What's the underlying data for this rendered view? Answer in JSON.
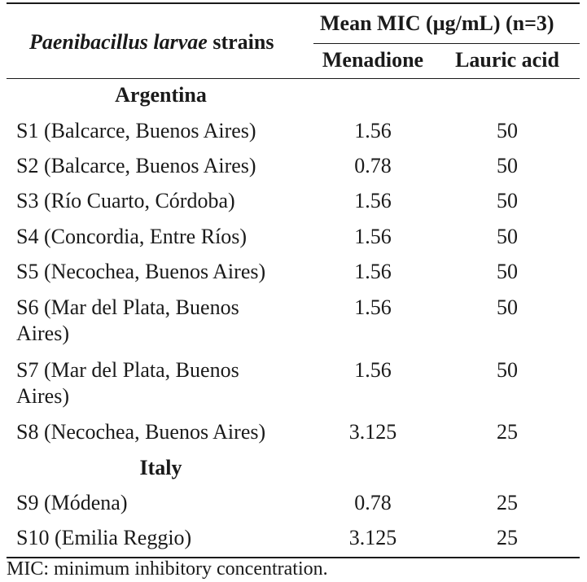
{
  "table": {
    "header": {
      "strain_col_italic": "Paenibacillus larvae",
      "strain_col_rest": " strains",
      "mic_group": "Mean MIC (µg/mL) (n=3)",
      "col_menadione": "Menadione",
      "col_lauric": "Lauric acid"
    },
    "groups": [
      {
        "name": "Argentina",
        "rows": [
          {
            "strain": "S1 (Balcarce, Buenos Aires)",
            "menadione": "1.56",
            "lauric": "50"
          },
          {
            "strain": "S2 (Balcarce, Buenos Aires)",
            "menadione": "0.78",
            "lauric": "50"
          },
          {
            "strain": "S3 (Río Cuarto, Córdoba)",
            "menadione": "1.56",
            "lauric": "50"
          },
          {
            "strain": "S4 (Concordia, Entre Ríos)",
            "menadione": "1.56",
            "lauric": "50"
          },
          {
            "strain": "S5 (Necochea, Buenos Aires)",
            "menadione": "1.56",
            "lauric": "50"
          },
          {
            "strain": "S6 (Mar del Plata, Buenos Aires)",
            "menadione": "1.56",
            "lauric": "50"
          },
          {
            "strain": "S7 (Mar del Plata, Buenos Aires)",
            "menadione": "1.56",
            "lauric": "50"
          },
          {
            "strain": "S8 (Necochea, Buenos Aires)",
            "menadione": "3.125",
            "lauric": "25"
          }
        ]
      },
      {
        "name": "Italy",
        "rows": [
          {
            "strain": "S9 (Módena)",
            "menadione": "0.78",
            "lauric": "25"
          },
          {
            "strain": "S10 (Emilia Reggio)",
            "menadione": "3.125",
            "lauric": "25"
          }
        ]
      }
    ],
    "footnote": "MIC: minimum inhibitory concentration."
  }
}
